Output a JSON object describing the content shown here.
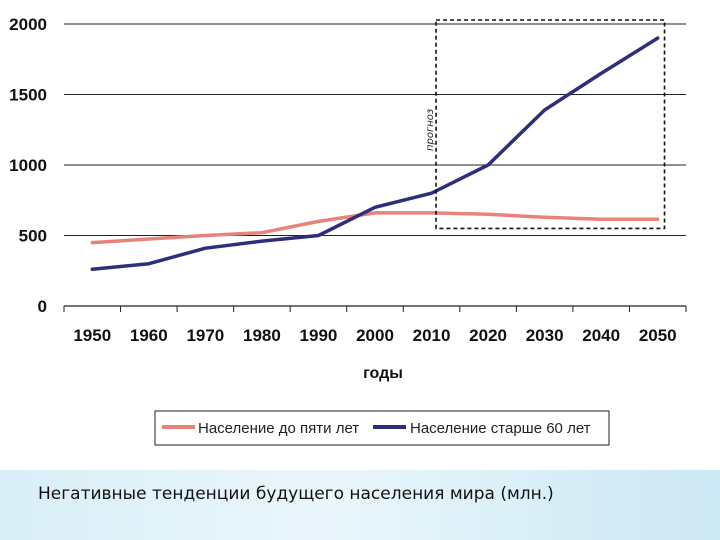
{
  "chart_data": {
    "type": "line",
    "x": [
      1950,
      1960,
      1970,
      1980,
      1990,
      2000,
      2010,
      2020,
      2030,
      2040,
      2050
    ],
    "series": [
      {
        "name": "Население до пяти лет",
        "color": "#e8837a",
        "values": [
          450,
          475,
          500,
          520,
          600,
          660,
          660,
          650,
          630,
          615,
          615
        ]
      },
      {
        "name": "Население старше 60 лет",
        "color": "#2e2f7a",
        "values": [
          260,
          300,
          410,
          460,
          500,
          700,
          800,
          1000,
          1390,
          1650,
          1900
        ]
      }
    ],
    "yticks": [
      "0",
      "500",
      "1000",
      "1500",
      "2000"
    ],
    "ylim": [
      0,
      2000
    ],
    "xlabel": "годы",
    "ylabel": "",
    "grid": true,
    "legend_position": "bottom",
    "forecast_annotation": "прогноз",
    "forecast_range": [
      2010,
      2050
    ]
  },
  "caption": "Негативные тенденции будущего населения мира (млн.)"
}
